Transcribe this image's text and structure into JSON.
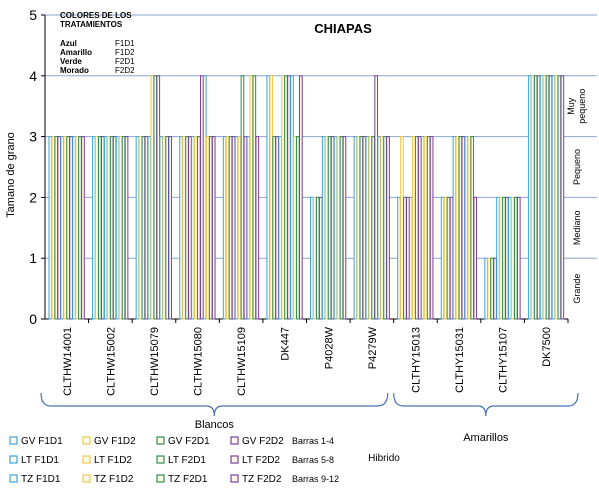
{
  "chart_data": {
    "type": "bar",
    "title": "CHIAPAS",
    "xlabel": "Hibrido",
    "ylabel": "Tamano de grano",
    "ylim": [
      0,
      5
    ],
    "yticks": [
      0,
      1,
      2,
      3,
      4,
      5
    ],
    "grid": true,
    "categories": [
      "CLTHW14001",
      "CLTHW15002",
      "CLTHW15079",
      "CLTHW15080",
      "CLTHW15109",
      "DK447",
      "P4028W",
      "P4279W",
      "CLTHY15013",
      "CLTHY15031",
      "CLTHY15107",
      "DK7500"
    ],
    "series": [
      {
        "name": "GV F1D1",
        "color": "#3fa3d8",
        "values": [
          3,
          3,
          3,
          3,
          3,
          4,
          2,
          3,
          2,
          2,
          1,
          4
        ]
      },
      {
        "name": "GV F1D2",
        "color": "#f0c850",
        "values": [
          3,
          3,
          3,
          3,
          3,
          4,
          2,
          3,
          3,
          2,
          1,
          4
        ]
      },
      {
        "name": "GV F2D1",
        "color": "#2e8b57",
        "values": [
          3,
          3,
          3,
          3,
          3,
          3,
          2,
          3,
          2,
          2,
          1,
          4
        ]
      },
      {
        "name": "GV F2D2",
        "color": "#7a3fa0",
        "values": [
          3,
          3,
          3,
          3,
          3,
          3,
          2,
          3,
          2,
          2,
          1,
          4
        ]
      },
      {
        "name": "LT F1D1",
        "color": "#3fa3d8",
        "values": [
          3,
          3,
          3,
          3,
          3,
          3,
          3,
          3,
          2,
          3,
          2,
          4
        ]
      },
      {
        "name": "LT F1D2",
        "color": "#f0c850",
        "values": [
          3,
          3,
          4,
          3,
          3,
          4,
          3,
          3,
          3,
          3,
          2,
          4
        ]
      },
      {
        "name": "LT F2D1",
        "color": "#2e8b57",
        "values": [
          3,
          3,
          4,
          3,
          4,
          4,
          3,
          3,
          3,
          3,
          2,
          4
        ]
      },
      {
        "name": "LT F2D2",
        "color": "#7a3fa0",
        "values": [
          3,
          3,
          4,
          4,
          3,
          4,
          3,
          4,
          3,
          3,
          2,
          4
        ]
      },
      {
        "name": "TZ F1D1",
        "color": "#3fa3d8",
        "values": [
          3,
          3,
          3,
          4,
          3,
          4,
          3,
          3,
          3,
          3,
          2,
          4
        ]
      },
      {
        "name": "TZ F1D2",
        "color": "#f0c850",
        "values": [
          3,
          3,
          3,
          3,
          4,
          3,
          3,
          3,
          3,
          3,
          2,
          4
        ]
      },
      {
        "name": "TZ F2D1",
        "color": "#2e8b57",
        "values": [
          3,
          3,
          3,
          3,
          4,
          3,
          3,
          3,
          3,
          3,
          2,
          4
        ]
      },
      {
        "name": "TZ F2D2",
        "color": "#7a3fa0",
        "values": [
          3,
          3,
          3,
          3,
          3,
          4,
          3,
          3,
          3,
          2,
          2,
          4
        ]
      }
    ],
    "groups": [
      {
        "label": "Blancos",
        "first": 0,
        "last": 7
      },
      {
        "label": "Amarillos",
        "first": 8,
        "last": 11
      }
    ],
    "right_labels": [
      {
        "label": "Muy pequeno",
        "from": 3,
        "to": 4
      },
      {
        "label": "Pequeno",
        "from": 2,
        "to": 3
      },
      {
        "label": "Mediano",
        "from": 1,
        "to": 2
      },
      {
        "label": "Grande",
        "from": 0,
        "to": 1
      }
    ],
    "color_note": {
      "title": "COLORES DE LOS TRATAMIENTOS",
      "rows": [
        {
          "color": "Azul",
          "code": "F1D1"
        },
        {
          "color": "Amarillo",
          "code": "F1D2"
        },
        {
          "color": "Verde",
          "code": "F2D1"
        },
        {
          "color": "Morado",
          "code": "F2D2"
        }
      ]
    },
    "legend": {
      "row_notes": [
        "Barras 1-4",
        "Barras 5-8",
        "Barras 9-12"
      ]
    }
  }
}
